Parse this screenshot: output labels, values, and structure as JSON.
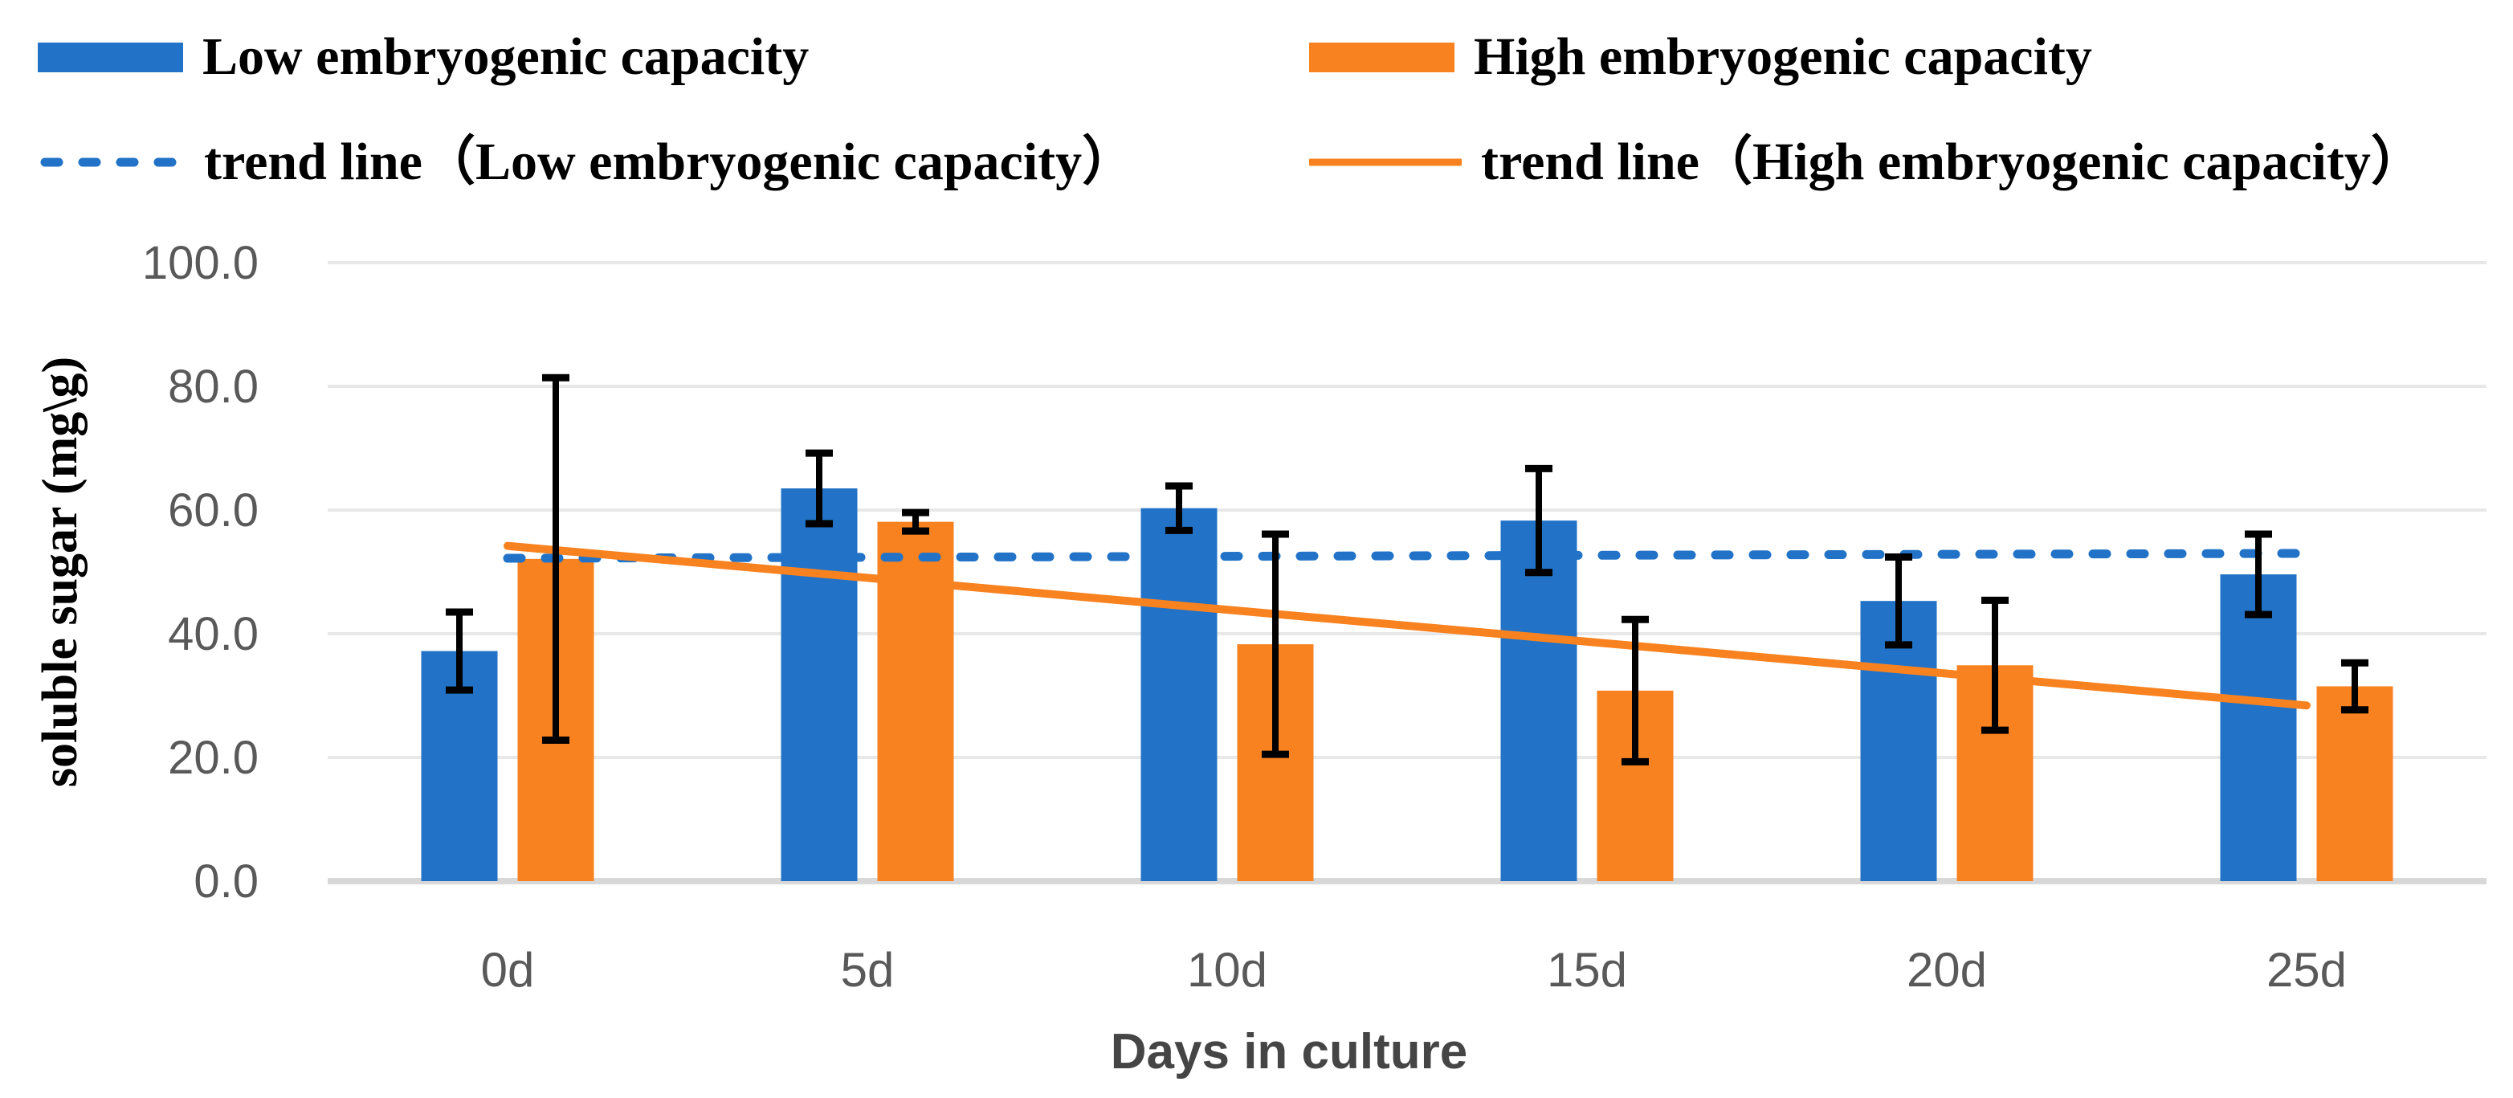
{
  "legend": {
    "series1": "Low embryogenic capacity",
    "series2": "High embryogenic capacity",
    "trend1": "trend line（Low embryogenic capacity）",
    "trend2": "trend line（High embryogenic capacity）"
  },
  "colors": {
    "low": "#2273C7",
    "high": "#F8821F",
    "gridline": "#E8E8E8",
    "axis_line": "#D8D8D8",
    "tick_text": "#595959",
    "x_title_text": "#454545",
    "error_bar": "#000000"
  },
  "chart_data": {
    "type": "bar",
    "title": "",
    "xlabel": "Days in culture",
    "ylabel": "soluble sugar (mg\\g)",
    "categories": [
      "0d",
      "5d",
      "10d",
      "15d",
      "20d",
      "25d"
    ],
    "series": [
      {
        "name": "Low embryogenic capacity",
        "color": "#2273C7",
        "values": [
          37.2,
          63.5,
          60.3,
          58.3,
          45.3,
          49.6
        ],
        "errors": [
          6.3,
          5.7,
          3.6,
          8.4,
          7.1,
          6.5
        ]
      },
      {
        "name": "High embryogenic capacity",
        "color": "#F8821F",
        "values": [
          52.1,
          58.1,
          38.3,
          30.8,
          34.9,
          31.5
        ],
        "errors": [
          29.3,
          1.5,
          17.8,
          11.5,
          10.5,
          3.8
        ]
      }
    ],
    "trendlines": [
      {
        "name": "trend line（Low embryogenic capacity）",
        "series": "Low embryogenic capacity",
        "style": "dashed",
        "color": "#2273C7",
        "start": 52.2,
        "end": 53.0
      },
      {
        "name": "trend line（High embryogenic capacity）",
        "series": "High embryogenic capacity",
        "style": "solid",
        "color": "#F8821F",
        "start": 54.2,
        "end": 28.4
      }
    ],
    "ylim": [
      0,
      100
    ],
    "y_ticks": [
      0,
      20,
      40,
      60,
      80,
      100
    ],
    "y_tick_labels": [
      "0.0",
      "20.0",
      "40.0",
      "60.0",
      "80.0",
      "100.0"
    ],
    "grid": true,
    "legend_position": "top",
    "error_bars": true
  }
}
